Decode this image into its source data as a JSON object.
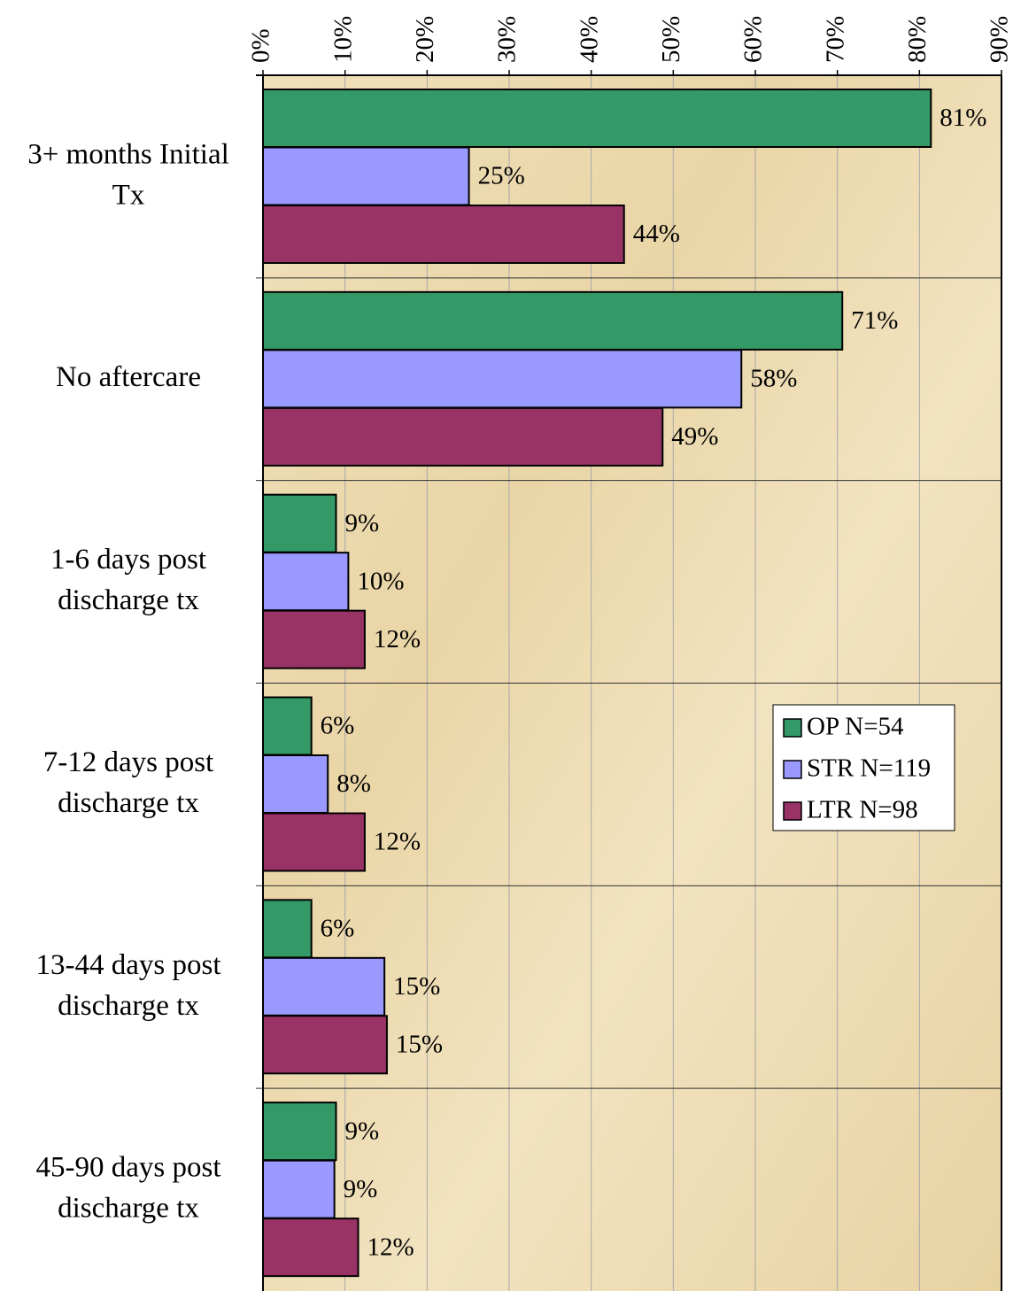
{
  "chart_data": {
    "type": "hbar",
    "categories": [
      "3+ months Initial Tx",
      "No aftercare",
      "1-6 days post discharge tx",
      "7-12 days post discharge tx",
      "13-44 days post discharge tx",
      "45-90 days post discharge tx"
    ],
    "series": [
      {
        "name": "OP N=54",
        "color": "#339966",
        "values": [
          81.4,
          70.6,
          8.9,
          5.9,
          5.9,
          8.9
        ],
        "value_labels": [
          "81%",
          "71%",
          "9%",
          "6%",
          "6%",
          "9%"
        ]
      },
      {
        "name": "STR N=119",
        "color": "#9999ff",
        "values": [
          25.1,
          58.3,
          10.4,
          7.9,
          14.8,
          8.7
        ],
        "value_labels": [
          "25%",
          "58%",
          "10%",
          "8%",
          "15%",
          "9%"
        ]
      },
      {
        "name": "LTR N=98",
        "color": "#993366",
        "values": [
          44.0,
          48.7,
          12.4,
          12.4,
          15.1,
          11.6
        ],
        "value_labels": [
          "44%",
          "49%",
          "12%",
          "12%",
          "15%",
          "12%"
        ]
      }
    ],
    "xlim": [
      0,
      90
    ],
    "xticks": [
      {
        "value": 0,
        "label": "0%"
      },
      {
        "value": 10,
        "label": "10%"
      },
      {
        "value": 20,
        "label": "20%"
      },
      {
        "value": 30,
        "label": "30%"
      },
      {
        "value": 40,
        "label": "40%"
      },
      {
        "value": 50,
        "label": "50%"
      },
      {
        "value": 60,
        "label": "60%"
      },
      {
        "value": 70,
        "label": "70%"
      },
      {
        "value": 80,
        "label": "80%"
      },
      {
        "value": 90,
        "label": "90%"
      }
    ],
    "grid": true,
    "legend": "right"
  }
}
